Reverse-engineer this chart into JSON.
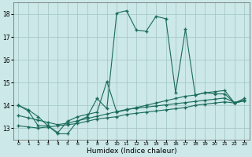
{
  "xlabel": "Humidex (Indice chaleur)",
  "bg_color": "#cce8e8",
  "grid_color": "#a0c4c4",
  "line_color": "#1a6b5a",
  "xlim": [
    -0.5,
    23.5
  ],
  "ylim": [
    12.5,
    18.5
  ],
  "xticks": [
    0,
    1,
    2,
    3,
    4,
    5,
    6,
    7,
    8,
    9,
    10,
    11,
    12,
    13,
    14,
    15,
    16,
    17,
    18,
    19,
    20,
    21,
    22,
    23
  ],
  "yticks": [
    13,
    14,
    15,
    16,
    17,
    18
  ],
  "line1_x": [
    0,
    1,
    2,
    3,
    4,
    5,
    6,
    7,
    8,
    9,
    10,
    11,
    12,
    13,
    14,
    15,
    16,
    17,
    18,
    19,
    20,
    21,
    22,
    23
  ],
  "line1_y": [
    14.0,
    13.8,
    13.5,
    13.1,
    12.75,
    12.75,
    13.3,
    13.5,
    14.3,
    13.85,
    18.05,
    18.15,
    17.3,
    17.25,
    17.9,
    17.8,
    14.55,
    17.35,
    14.45,
    14.55,
    14.5,
    14.5,
    14.1,
    14.2
  ],
  "line2_x": [
    0,
    1,
    2,
    3,
    4,
    5,
    6,
    7,
    8,
    9,
    10,
    11,
    12,
    13,
    14,
    15,
    16,
    17,
    18,
    19,
    20,
    21,
    22,
    23
  ],
  "line2_y": [
    14.0,
    13.75,
    13.1,
    13.1,
    12.8,
    13.3,
    13.5,
    13.6,
    13.7,
    15.05,
    13.7,
    13.8,
    13.9,
    14.0,
    14.1,
    14.2,
    14.3,
    14.4,
    14.45,
    14.55,
    14.6,
    14.65,
    14.1,
    14.3
  ],
  "line3_x": [
    0,
    1,
    2,
    3,
    4,
    5,
    6,
    7,
    8,
    9,
    10,
    11,
    12,
    13,
    14,
    15,
    16,
    17,
    18,
    19,
    20,
    21,
    22,
    23
  ],
  "line3_y": [
    13.1,
    13.05,
    13.0,
    13.05,
    13.1,
    13.15,
    13.2,
    13.3,
    13.4,
    13.45,
    13.5,
    13.6,
    13.65,
    13.7,
    13.75,
    13.8,
    13.85,
    13.9,
    14.0,
    14.05,
    14.1,
    14.15,
    14.1,
    14.2
  ],
  "line4_x": [
    0,
    1,
    2,
    3,
    4,
    5,
    6,
    7,
    8,
    9,
    10,
    11,
    12,
    13,
    14,
    15,
    16,
    17,
    18,
    19,
    20,
    21,
    22,
    23
  ],
  "line4_y": [
    13.55,
    13.45,
    13.35,
    13.25,
    13.15,
    13.22,
    13.32,
    13.42,
    13.52,
    13.62,
    13.72,
    13.82,
    13.87,
    13.92,
    13.97,
    14.02,
    14.07,
    14.12,
    14.17,
    14.22,
    14.27,
    14.32,
    14.12,
    14.22
  ]
}
